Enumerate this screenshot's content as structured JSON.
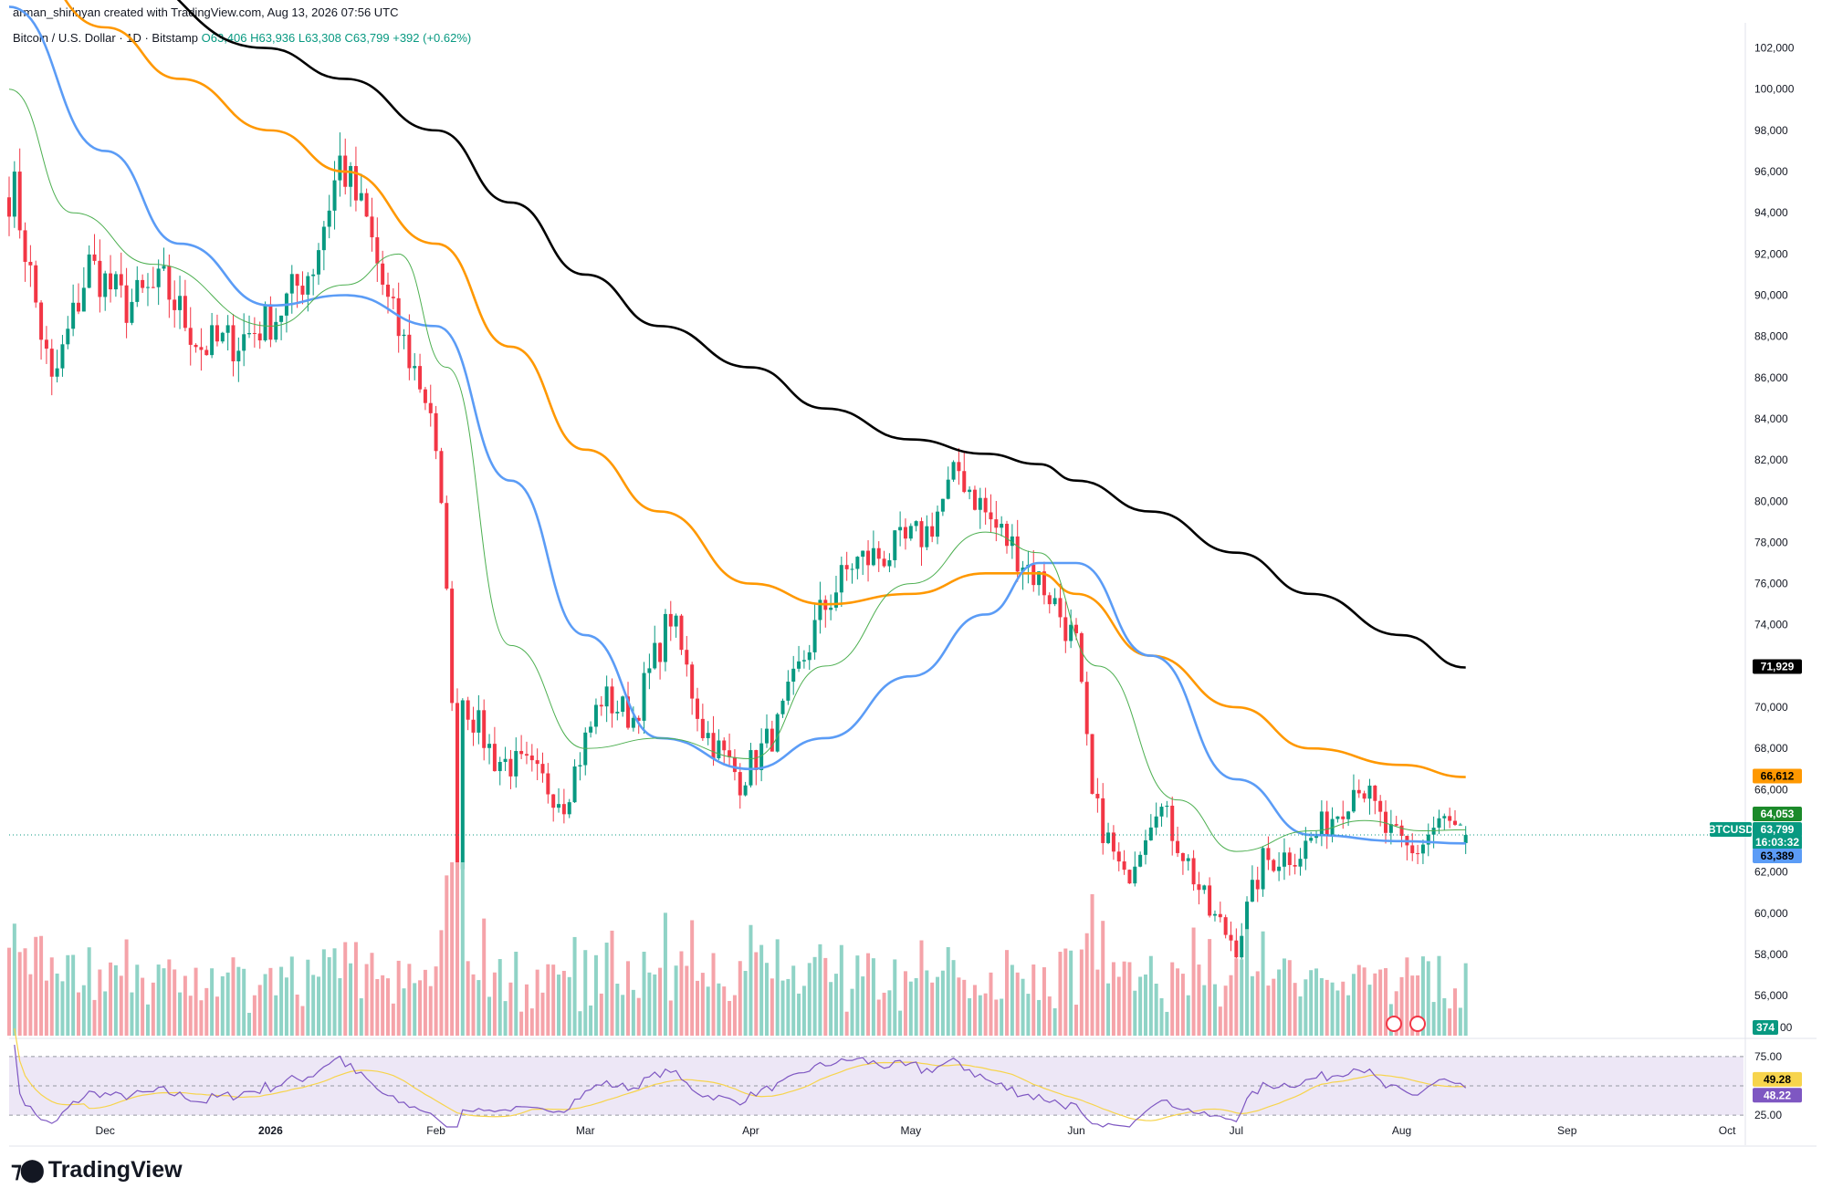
{
  "header": {
    "credit": "arman_shirinyan created with TradingView.com, Aug 13, 2026 07:56 UTC",
    "symbol_title": "Bitcoin / U.S. Dollar · 1D · Bitstamp",
    "ohlc": "O63,406 H63,936 L63,308 C63,799 +392 (+0.62%)"
  },
  "brand": {
    "name": "TradingView",
    "logo_icon": "tradingview-logo-icon"
  },
  "colors": {
    "up": "#089981",
    "down": "#f23645",
    "up_volume": "#8fd3c6",
    "down_volume": "#f5a3a9",
    "ma_200": "#000000",
    "ma_100": "#ff9800",
    "ma_50": "#5b9cf6",
    "ma_20": "#4caf50",
    "rsi_line": "#7e57c2",
    "rsi_ma": "#f7d44c",
    "rsi_band": "#ede7f6"
  },
  "chart_data": {
    "type": "candlestick",
    "x_axis": {
      "ticks": [
        "Dec",
        "2026",
        "Feb",
        "Mar",
        "Apr",
        "May",
        "Jun",
        "Jul",
        "Aug",
        "Sep",
        "Oct"
      ]
    },
    "y_axis": {
      "ticks": [
        "102,000",
        "100,000",
        "98,000",
        "96,000",
        "94,000",
        "92,000",
        "90,000",
        "88,000",
        "86,000",
        "84,000",
        "82,000",
        "80,000",
        "78,000",
        "76,000",
        "74,000",
        "72,000",
        "70,000",
        "68,000",
        "66,000",
        "64,000",
        "62,000",
        "60,000",
        "58,000",
        "56,000"
      ],
      "range": [
        54500,
        103000
      ]
    },
    "price_key_points": [
      {
        "d": "2025-11-14",
        "c": 95000
      },
      {
        "d": "2025-11-21",
        "c": 85500
      },
      {
        "d": "2025-11-28",
        "c": 91500
      },
      {
        "d": "2025-12-05",
        "c": 89500
      },
      {
        "d": "2025-12-12",
        "c": 90500
      },
      {
        "d": "2025-12-19",
        "c": 87500
      },
      {
        "d": "2025-12-26",
        "c": 87800
      },
      {
        "d": "2026-01-02",
        "c": 89000
      },
      {
        "d": "2026-01-09",
        "c": 91500
      },
      {
        "d": "2026-01-14",
        "c": 96500
      },
      {
        "d": "2026-01-19",
        "c": 93500
      },
      {
        "d": "2026-01-23",
        "c": 89500
      },
      {
        "d": "2026-01-31",
        "c": 84500
      },
      {
        "d": "2026-02-03",
        "c": 76500
      },
      {
        "d": "2026-02-05",
        "c": 62800
      },
      {
        "d": "2026-02-06",
        "c": 70500
      },
      {
        "d": "2026-02-12",
        "c": 67500
      },
      {
        "d": "2026-02-18",
        "c": 67000
      },
      {
        "d": "2026-02-25",
        "c": 65500
      },
      {
        "d": "2026-03-04",
        "c": 70500
      },
      {
        "d": "2026-03-10",
        "c": 69500
      },
      {
        "d": "2026-03-17",
        "c": 74500
      },
      {
        "d": "2026-03-23",
        "c": 69000
      },
      {
        "d": "2026-03-30",
        "c": 66500
      },
      {
        "d": "2026-04-06",
        "c": 69000
      },
      {
        "d": "2026-04-14",
        "c": 74500
      },
      {
        "d": "2026-04-20",
        "c": 77000
      },
      {
        "d": "2026-04-27",
        "c": 77500
      },
      {
        "d": "2026-05-04",
        "c": 78500
      },
      {
        "d": "2026-05-10",
        "c": 81500
      },
      {
        "d": "2026-05-16",
        "c": 79000
      },
      {
        "d": "2026-05-21",
        "c": 77500
      },
      {
        "d": "2026-05-27",
        "c": 75500
      },
      {
        "d": "2026-06-01",
        "c": 73000
      },
      {
        "d": "2026-06-04",
        "c": 65500
      },
      {
        "d": "2026-06-10",
        "c": 61500
      },
      {
        "d": "2026-06-16",
        "c": 65500
      },
      {
        "d": "2026-06-21",
        "c": 63000
      },
      {
        "d": "2026-06-26",
        "c": 60000
      },
      {
        "d": "2026-07-01",
        "c": 58500
      },
      {
        "d": "2026-07-06",
        "c": 62500
      },
      {
        "d": "2026-07-13",
        "c": 63000
      },
      {
        "d": "2026-07-20",
        "c": 65000
      },
      {
        "d": "2026-07-24",
        "c": 66500
      },
      {
        "d": "2026-07-29",
        "c": 64000
      },
      {
        "d": "2026-08-03",
        "c": 62800
      },
      {
        "d": "2026-08-08",
        "c": 64500
      },
      {
        "d": "2026-08-13",
        "c": 63799
      }
    ],
    "moving_averages": [
      {
        "id": "ma-200",
        "points": [
          [
            "2025-11-13",
            108500
          ],
          [
            "2025-12-01",
            106000
          ],
          [
            "2025-12-31",
            102000
          ],
          [
            "2026-01-15",
            100500
          ],
          [
            "2026-02-01",
            98000
          ],
          [
            "2026-02-15",
            94500
          ],
          [
            "2026-03-01",
            91000
          ],
          [
            "2026-03-15",
            88500
          ],
          [
            "2026-04-01",
            86500
          ],
          [
            "2026-04-15",
            84500
          ],
          [
            "2026-05-01",
            83000
          ],
          [
            "2026-05-15",
            82300
          ],
          [
            "2026-05-25",
            81800
          ],
          [
            "2026-06-01",
            81000
          ],
          [
            "2026-06-15",
            79500
          ],
          [
            "2026-07-01",
            77500
          ],
          [
            "2026-07-15",
            75500
          ],
          [
            "2026-08-01",
            73500
          ],
          [
            "2026-08-13",
            71929
          ]
        ]
      },
      {
        "id": "ma-100",
        "points": [
          [
            "2025-11-13",
            107000
          ],
          [
            "2025-12-01",
            103000
          ],
          [
            "2025-12-15",
            100500
          ],
          [
            "2026-01-01",
            98000
          ],
          [
            "2026-01-15",
            96000
          ],
          [
            "2026-02-01",
            92500
          ],
          [
            "2026-02-15",
            87500
          ],
          [
            "2026-03-01",
            82500
          ],
          [
            "2026-03-15",
            79500
          ],
          [
            "2026-04-01",
            76000
          ],
          [
            "2026-04-15",
            75000
          ],
          [
            "2026-05-01",
            75500
          ],
          [
            "2026-05-15",
            76500
          ],
          [
            "2026-05-25",
            76500
          ],
          [
            "2026-06-01",
            75500
          ],
          [
            "2026-06-15",
            72500
          ],
          [
            "2026-07-01",
            70000
          ],
          [
            "2026-07-15",
            68000
          ],
          [
            "2026-08-01",
            67200
          ],
          [
            "2026-08-13",
            66612
          ]
        ]
      },
      {
        "id": "ma-50",
        "points": [
          [
            "2025-11-13",
            104000
          ],
          [
            "2025-12-01",
            97000
          ],
          [
            "2025-12-15",
            92500
          ],
          [
            "2026-01-01",
            89500
          ],
          [
            "2026-01-15",
            90000
          ],
          [
            "2026-02-01",
            88500
          ],
          [
            "2026-02-15",
            81000
          ],
          [
            "2026-03-01",
            73500
          ],
          [
            "2026-03-15",
            68500
          ],
          [
            "2026-04-01",
            67000
          ],
          [
            "2026-04-15",
            68500
          ],
          [
            "2026-05-01",
            71500
          ],
          [
            "2026-05-15",
            74500
          ],
          [
            "2026-05-25",
            77000
          ],
          [
            "2026-06-01",
            77000
          ],
          [
            "2026-06-15",
            72500
          ],
          [
            "2026-07-01",
            66500
          ],
          [
            "2026-07-15",
            63800
          ],
          [
            "2026-08-01",
            63500
          ],
          [
            "2026-08-13",
            63389
          ]
        ]
      },
      {
        "id": "ma-20",
        "points": [
          [
            "2025-11-13",
            100000
          ],
          [
            "2025-11-25",
            94000
          ],
          [
            "2025-12-10",
            91500
          ],
          [
            "2026-01-01",
            88500
          ],
          [
            "2026-01-15",
            90500
          ],
          [
            "2026-01-25",
            92000
          ],
          [
            "2026-02-03",
            86500
          ],
          [
            "2026-02-15",
            73000
          ],
          [
            "2026-03-01",
            68000
          ],
          [
            "2026-03-15",
            68500
          ],
          [
            "2026-04-01",
            67500
          ],
          [
            "2026-04-15",
            72000
          ],
          [
            "2026-05-01",
            76000
          ],
          [
            "2026-05-15",
            78500
          ],
          [
            "2026-05-25",
            77500
          ],
          [
            "2026-06-05",
            72000
          ],
          [
            "2026-06-20",
            65500
          ],
          [
            "2026-07-01",
            63000
          ],
          [
            "2026-07-15",
            64000
          ],
          [
            "2026-07-25",
            64500
          ],
          [
            "2026-08-05",
            64000
          ],
          [
            "2026-08-13",
            64053
          ]
        ]
      }
    ],
    "price_tags": [
      {
        "id": "ma200-tag",
        "label": "71,929",
        "value": 71929,
        "color": "#000000"
      },
      {
        "id": "ma100-tag",
        "label": "66,612",
        "value": 66612,
        "color": "#ff9800"
      },
      {
        "id": "ma20-tag",
        "label": "64,053",
        "value": 64053,
        "color": "#4caf50"
      },
      {
        "id": "btcusd-tag",
        "label": "BTCUSD",
        "value": 63799,
        "color": "#089981"
      },
      {
        "id": "last-price-tag",
        "label": "63,799",
        "value": 63799,
        "color": "#089981"
      },
      {
        "id": "countdown-tag",
        "label": "16:03:32",
        "value": 63799,
        "color": "#089981"
      },
      {
        "id": "ma50-tag",
        "label": "63,389",
        "value": 63389,
        "color": "#5b9cf6"
      }
    ],
    "volume": {
      "last_label": "374"
    },
    "rsi": {
      "ticks": [
        "75.00",
        "25.00"
      ],
      "value_label": "48.22",
      "ma_label": "49.28",
      "upper_band": 75,
      "lower_band": 25
    }
  }
}
